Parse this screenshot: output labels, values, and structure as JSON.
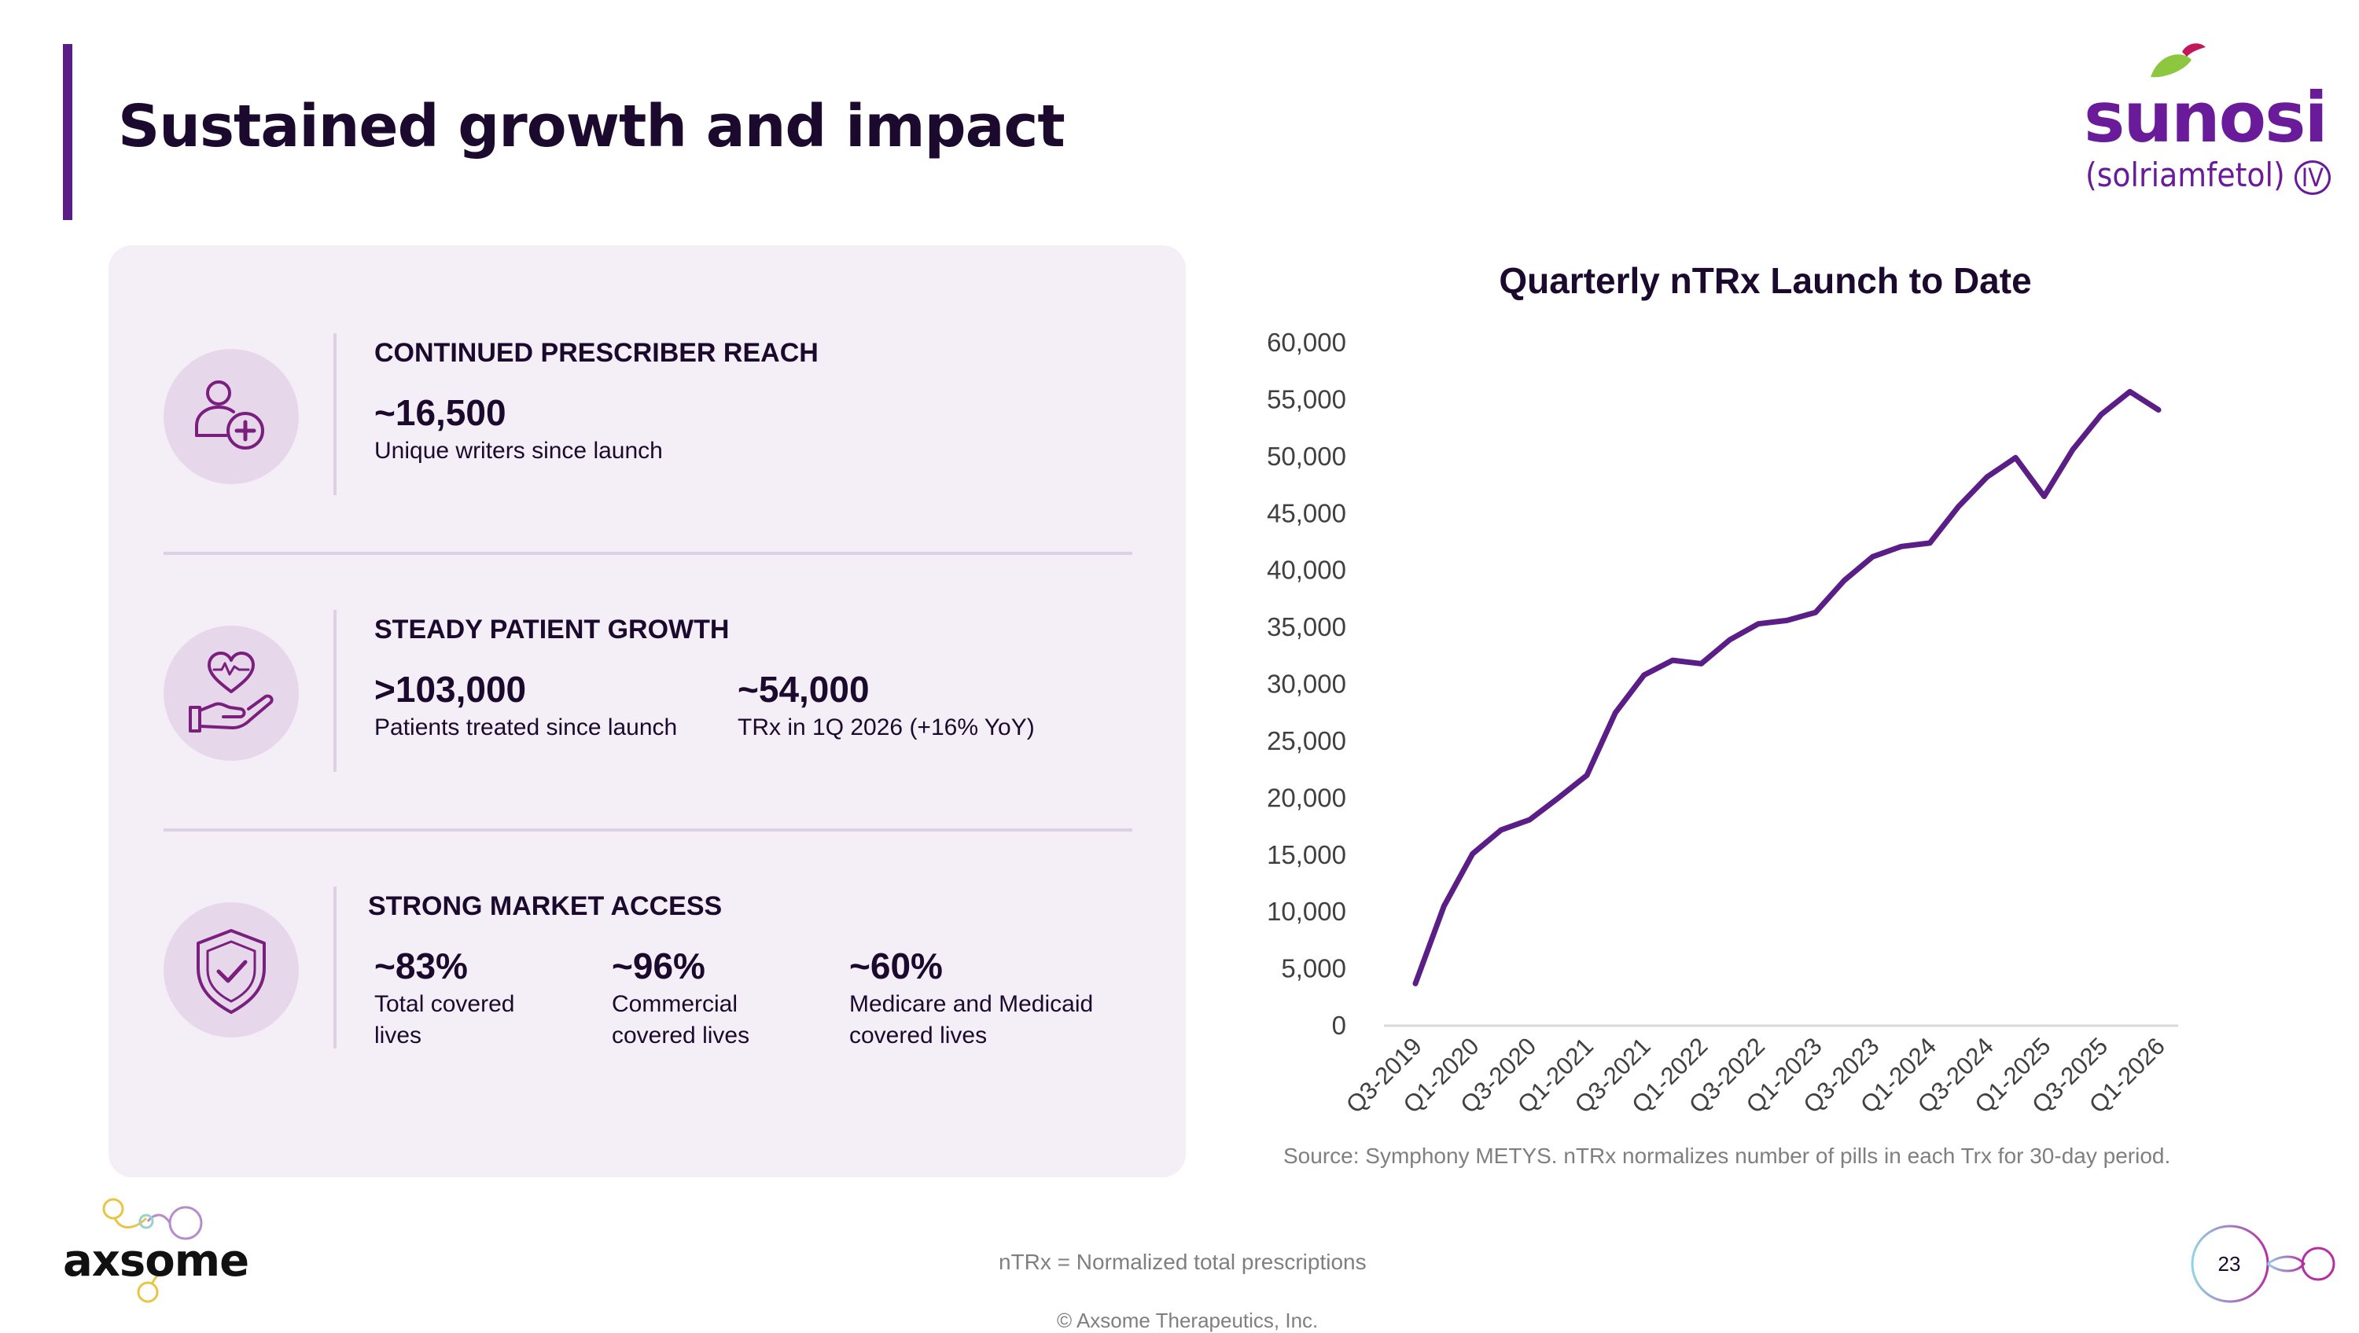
{
  "slide": {
    "title": "Sustained growth and impact",
    "page_number": "23",
    "footnote": "nTRx = Normalized total prescriptions",
    "copyright": "© Axsome Therapeutics, Inc.",
    "company_logo": "axsome",
    "brand_logo": {
      "name": "sunosi",
      "generic": "(solriamfetol)",
      "mark": "IV"
    }
  },
  "colors": {
    "accent": "#5b1e87",
    "panel": "#f4eff6",
    "icon_bg": "#e6d8ea",
    "line": "#5b1e87",
    "text": "#1c0a2e"
  },
  "sections": [
    {
      "heading": "CONTINUED PRESCRIBER REACH",
      "icon": "prescriber-plus-icon",
      "stats": [
        {
          "value": "~16,500",
          "desc": "Unique writers since launch"
        }
      ]
    },
    {
      "heading": "STEADY PATIENT GROWTH",
      "icon": "heart-hand-icon",
      "stats": [
        {
          "value": ">103,000",
          "desc": "Patients treated since launch"
        },
        {
          "value": "~54,000",
          "desc": "TRx in 1Q 2026 (+16% YoY)"
        }
      ]
    },
    {
      "heading": "STRONG MARKET ACCESS",
      "icon": "shield-check-icon",
      "stats": [
        {
          "value": "~83%",
          "desc": "Total covered lives"
        },
        {
          "value": "~96%",
          "desc": "Commercial covered lives"
        },
        {
          "value": "~60%",
          "desc": "Medicare and Medicaid covered lives"
        }
      ]
    }
  ],
  "chart_data": {
    "type": "line",
    "title": "Quarterly nTRx Launch to Date",
    "xlabel": "",
    "ylabel": "",
    "ylim": [
      0,
      60000
    ],
    "yticks": [
      "0",
      "5,000",
      "10,000",
      "15,000",
      "20,000",
      "25,000",
      "30,000",
      "35,000",
      "40,000",
      "45,000",
      "50,000",
      "55,000",
      "60,000"
    ],
    "categories": [
      "Q3-2019",
      "Q4-2019",
      "Q1-2020",
      "Q2-2020",
      "Q3-2020",
      "Q4-2020",
      "Q1-2021",
      "Q2-2021",
      "Q3-2021",
      "Q4-2021",
      "Q1-2022",
      "Q2-2022",
      "Q3-2022",
      "Q4-2022",
      "Q1-2023",
      "Q2-2023",
      "Q3-2023",
      "Q4-2023",
      "Q1-2024",
      "Q2-2024",
      "Q3-2024",
      "Q4-2024",
      "Q1-2025",
      "Q2-2025",
      "Q3-2025",
      "Q4-2025",
      "Q1-2026"
    ],
    "x_tick_labels": [
      "Q3-2019",
      "Q1-2020",
      "Q3-2020",
      "Q1-2021",
      "Q3-2021",
      "Q1-2022",
      "Q3-2022",
      "Q1-2023",
      "Q3-2023",
      "Q1-2024",
      "Q3-2024",
      "Q1-2025",
      "Q3-2025",
      "Q1-2026"
    ],
    "values": [
      3700,
      10500,
      15100,
      17200,
      18100,
      20000,
      22000,
      27500,
      30800,
      32100,
      31800,
      33900,
      35300,
      35600,
      36300,
      39100,
      41200,
      42100,
      42400,
      45600,
      48200,
      49900,
      46500,
      50600,
      53700,
      55700,
      54100
    ],
    "grid": false,
    "legend": "none",
    "source": "Source: Symphony METYS. nTRx normalizes number of pills in each Trx for 30-day period."
  }
}
